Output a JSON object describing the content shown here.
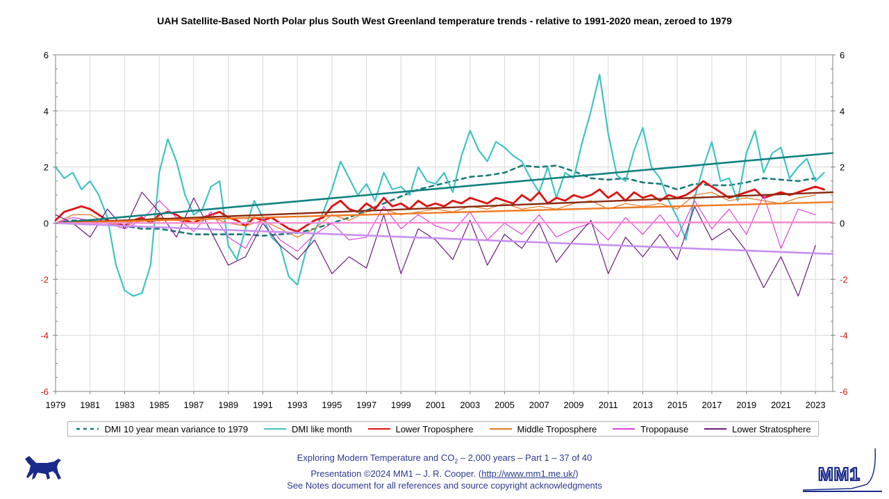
{
  "chart_data": {
    "type": "line",
    "title": "UAH Satellite-Based North Polar plus South West Greenland temperature trends - relative to 1991-2020 mean, zeroed to 1979",
    "xlim": [
      1979,
      2024
    ],
    "ylim": [
      -6,
      6
    ],
    "x_ticks": [
      "1979",
      "1981",
      "1983",
      "1985",
      "1987",
      "1989",
      "1991",
      "1993",
      "1995",
      "1997",
      "1999",
      "2001",
      "2003",
      "2005",
      "2007",
      "2009",
      "2011",
      "2013",
      "2015",
      "2017",
      "2019",
      "2021",
      "2023"
    ],
    "y_ticks": [
      "6",
      "4",
      "2",
      "0",
      "-2",
      "-4",
      "-6"
    ],
    "y_tick_values": [
      6,
      4,
      2,
      0,
      -2,
      -4,
      -6
    ],
    "grid": true,
    "legend_position": "bottom",
    "series": [
      {
        "name": "DMI 10 year mean variance to 1979",
        "color": "#1a7a7a",
        "style": "dashed",
        "width": 2.6,
        "x": [
          1979,
          1980,
          1981,
          1982,
          1983,
          1984,
          1985,
          1986,
          1987,
          1988,
          1989,
          1990,
          1991,
          1992,
          1993,
          1994,
          1995,
          1996,
          1997,
          1998,
          1999,
          2000,
          2001,
          2002,
          2003,
          2004,
          2005,
          2006,
          2007,
          2008,
          2009,
          2010,
          2011,
          2012,
          2013,
          2014,
          2015,
          2016,
          2017,
          2018,
          2019,
          2020,
          2021,
          2022,
          2023
        ],
        "y": [
          0.0,
          0.1,
          0.1,
          0.0,
          -0.1,
          -0.2,
          -0.2,
          -0.3,
          -0.4,
          -0.4,
          -0.4,
          -0.4,
          -0.45,
          -0.4,
          -0.35,
          -0.2,
          0.0,
          0.2,
          0.45,
          0.7,
          0.95,
          1.2,
          1.35,
          1.5,
          1.65,
          1.7,
          1.8,
          2.05,
          2.0,
          2.05,
          1.85,
          1.6,
          1.55,
          1.6,
          1.45,
          1.4,
          1.2,
          1.4,
          1.35,
          1.35,
          1.45,
          1.6,
          1.55,
          1.5,
          1.6
        ]
      },
      {
        "name": "DMI like month",
        "color": "#3ec4c4",
        "style": "solid",
        "width": 2.2,
        "x": [
          1979,
          1979.5,
          1980,
          1980.5,
          1981,
          1981.5,
          1982,
          1982.5,
          1983,
          1983.5,
          1984,
          1984.5,
          1985,
          1985.5,
          1986,
          1986.5,
          1987,
          1987.5,
          1988,
          1988.5,
          1989,
          1989.5,
          1990,
          1990.5,
          1991,
          1991.5,
          1992,
          1992.5,
          1993,
          1993.5,
          1994,
          1994.5,
          1995,
          1995.5,
          1996,
          1996.5,
          1997,
          1997.5,
          1998,
          1998.5,
          1999,
          1999.5,
          2000,
          2000.5,
          2001,
          2001.5,
          2002,
          2002.5,
          2003,
          2003.5,
          2004,
          2004.5,
          2005,
          2005.5,
          2006,
          2006.5,
          2007,
          2007.5,
          2008,
          2008.5,
          2009,
          2009.5,
          2010,
          2010.5,
          2011,
          2011.5,
          2012,
          2012.5,
          2013,
          2013.5,
          2014,
          2014.5,
          2015,
          2015.5,
          2016,
          2016.5,
          2017,
          2017.5,
          2018,
          2018.5,
          2019,
          2019.5,
          2020,
          2020.5,
          2021,
          2021.5,
          2022,
          2022.5,
          2023,
          2023.5
        ],
        "y": [
          2.0,
          1.6,
          1.8,
          1.2,
          1.5,
          1.0,
          0.2,
          -1.5,
          -2.4,
          -2.6,
          -2.5,
          -1.5,
          1.8,
          3.0,
          2.2,
          1.0,
          0.3,
          0.5,
          1.3,
          1.5,
          -0.8,
          -1.3,
          -0.2,
          0.8,
          0.2,
          -0.5,
          -0.8,
          -1.9,
          -2.2,
          -1.0,
          -0.3,
          0.4,
          1.2,
          2.2,
          1.6,
          1.0,
          1.4,
          0.8,
          1.8,
          1.2,
          1.3,
          1.0,
          2.0,
          1.5,
          1.4,
          1.8,
          1.1,
          2.4,
          3.3,
          2.6,
          2.2,
          2.9,
          2.7,
          2.4,
          2.2,
          1.6,
          1.1,
          2.0,
          0.9,
          1.8,
          1.6,
          2.9,
          4.0,
          5.3,
          3.2,
          1.7,
          1.5,
          2.6,
          3.4,
          2.0,
          1.6,
          0.8,
          0.2,
          -0.6,
          0.9,
          2.0,
          2.9,
          1.5,
          1.6,
          0.8,
          2.5,
          3.3,
          1.8,
          2.5,
          2.7,
          1.6,
          2.0,
          2.3,
          1.5,
          1.8
        ]
      },
      {
        "name": "Lower Troposphere",
        "color": "#e01010",
        "style": "solid",
        "width": 2.8,
        "x": [
          1979,
          1979.5,
          1980,
          1980.5,
          1981,
          1981.5,
          1982,
          1982.5,
          1983,
          1983.5,
          1984,
          1984.5,
          1985,
          1985.5,
          1986,
          1986.5,
          1987,
          1987.5,
          1988,
          1988.5,
          1989,
          1989.5,
          1990,
          1990.5,
          1991,
          1991.5,
          1992,
          1992.5,
          1993,
          1993.5,
          1994,
          1994.5,
          1995,
          1995.5,
          1996,
          1996.5,
          1997,
          1997.5,
          1998,
          1998.5,
          1999,
          1999.5,
          2000,
          2000.5,
          2001,
          2001.5,
          2002,
          2002.5,
          2003,
          2003.5,
          2004,
          2004.5,
          2005,
          2005.5,
          2006,
          2006.5,
          2007,
          2007.5,
          2008,
          2008.5,
          2009,
          2009.5,
          2010,
          2010.5,
          2011,
          2011.5,
          2012,
          2012.5,
          2013,
          2013.5,
          2014,
          2014.5,
          2015,
          2015.5,
          2016,
          2016.5,
          2017,
          2017.5,
          2018,
          2018.5,
          2019,
          2019.5,
          2020,
          2020.5,
          2021,
          2021.5,
          2022,
          2022.5,
          2023,
          2023.5
        ],
        "y": [
          0.1,
          0.4,
          0.5,
          0.6,
          0.5,
          0.3,
          0.1,
          0.0,
          -0.1,
          0.1,
          0.2,
          0.0,
          0.3,
          0.4,
          0.3,
          0.1,
          0.0,
          0.2,
          0.3,
          0.4,
          0.2,
          0.1,
          -0.1,
          0.2,
          0.1,
          0.2,
          0.0,
          -0.2,
          -0.3,
          -0.1,
          0.1,
          0.2,
          0.6,
          0.8,
          0.5,
          0.4,
          0.7,
          0.5,
          0.9,
          0.6,
          0.7,
          0.5,
          0.8,
          0.6,
          0.7,
          0.6,
          0.8,
          0.7,
          0.9,
          0.8,
          0.7,
          0.9,
          0.8,
          0.7,
          1.0,
          0.8,
          1.1,
          0.7,
          0.9,
          0.8,
          1.0,
          0.9,
          1.0,
          1.2,
          0.9,
          1.1,
          0.8,
          1.1,
          0.9,
          1.0,
          0.8,
          1.0,
          0.9,
          1.0,
          1.2,
          1.5,
          1.3,
          1.1,
          0.9,
          1.0,
          1.1,
          1.2,
          0.9,
          1.0,
          1.1,
          1.0,
          1.1,
          1.2,
          1.3,
          1.2
        ]
      },
      {
        "name": "Middle Troposphere",
        "color": "#e07820",
        "style": "solid",
        "width": 1.2,
        "x": [
          1979,
          1980,
          1981,
          1982,
          1983,
          1984,
          1985,
          1986,
          1987,
          1988,
          1989,
          1990,
          1991,
          1992,
          1993,
          1994,
          1995,
          1996,
          1997,
          1998,
          1999,
          2000,
          2001,
          2002,
          2003,
          2004,
          2005,
          2006,
          2007,
          2008,
          2009,
          2010,
          2011,
          2012,
          2013,
          2014,
          2015,
          2016,
          2017,
          2018,
          2019,
          2020,
          2021,
          2022,
          2023
        ],
        "y": [
          0.0,
          0.3,
          0.3,
          0.0,
          -0.1,
          0.1,
          0.2,
          0.1,
          0.0,
          0.2,
          0.0,
          -0.1,
          0.1,
          -0.2,
          -0.5,
          -0.2,
          0.3,
          0.1,
          0.4,
          0.5,
          0.3,
          0.4,
          0.5,
          0.4,
          0.6,
          0.5,
          0.7,
          0.5,
          0.6,
          0.5,
          0.7,
          0.8,
          0.5,
          0.7,
          0.6,
          0.7,
          0.5,
          1.0,
          1.1,
          0.8,
          0.9,
          0.8,
          0.7,
          0.9,
          1.0
        ]
      },
      {
        "name": "Tropopause",
        "color": "#e040e0",
        "style": "solid",
        "width": 1.2,
        "x": [
          1979,
          1980,
          1981,
          1982,
          1983,
          1984,
          1985,
          1986,
          1987,
          1988,
          1989,
          1990,
          1991,
          1992,
          1993,
          1994,
          1995,
          1996,
          1997,
          1998,
          1999,
          2000,
          2001,
          2002,
          2003,
          2004,
          2005,
          2006,
          2007,
          2008,
          2009,
          2010,
          2011,
          2012,
          2013,
          2014,
          2015,
          2016,
          2017,
          2018,
          2019,
          2020,
          2021,
          2022,
          2023
        ],
        "y": [
          0.0,
          0.2,
          0.1,
          0.0,
          -0.2,
          0.1,
          0.8,
          0.2,
          -0.3,
          0.4,
          -0.5,
          -0.9,
          0.2,
          -0.6,
          -1.0,
          -0.4,
          0.0,
          -0.6,
          -0.5,
          0.6,
          -0.2,
          0.3,
          -0.1,
          -0.3,
          0.4,
          -0.6,
          0.0,
          -0.4,
          0.3,
          -0.5,
          -0.2,
          0.0,
          -0.6,
          0.2,
          -0.4,
          0.3,
          -0.5,
          0.8,
          -0.2,
          0.5,
          -0.4,
          1.0,
          -0.9,
          0.5,
          0.3
        ]
      },
      {
        "name": "Lower Stratosphere",
        "color": "#6a1a7a",
        "style": "solid",
        "width": 1.2,
        "x": [
          1979,
          1980,
          1981,
          1982,
          1983,
          1984,
          1985,
          1986,
          1987,
          1988,
          1989,
          1990,
          1991,
          1992,
          1993,
          1994,
          1995,
          1996,
          1997,
          1998,
          1999,
          2000,
          2001,
          2002,
          2003,
          2004,
          2005,
          2006,
          2007,
          2008,
          2009,
          2010,
          2011,
          2012,
          2013,
          2014,
          2015,
          2016,
          2017,
          2018,
          2019,
          2020,
          2021,
          2022,
          2023
        ],
        "y": [
          0.3,
          0.0,
          -0.5,
          0.5,
          -0.2,
          1.1,
          0.4,
          -0.5,
          0.9,
          -0.3,
          -1.5,
          -1.2,
          0.0,
          -0.8,
          -1.3,
          -0.6,
          -1.8,
          -1.2,
          -1.6,
          0.3,
          -1.8,
          -0.2,
          -0.6,
          -1.3,
          0.1,
          -1.5,
          -0.4,
          -0.9,
          0.0,
          -1.4,
          -0.6,
          0.1,
          -1.8,
          -0.5,
          -1.2,
          -0.4,
          -1.3,
          0.6,
          -0.6,
          -0.2,
          -1.0,
          -2.3,
          -1.2,
          -2.6,
          -0.8
        ]
      },
      {
        "name": "DMI like month trend",
        "color": "#108080",
        "style": "solid",
        "width": 2.6,
        "legend": false,
        "x": [
          1979,
          2024
        ],
        "y": [
          0.0,
          2.5
        ]
      },
      {
        "name": "Lower Troposphere trend",
        "color": "#8a2a10",
        "style": "solid",
        "width": 2.4,
        "legend": false,
        "x": [
          1979,
          2024
        ],
        "y": [
          0.0,
          1.1
        ]
      },
      {
        "name": "Middle Troposphere trend",
        "color": "#f07a20",
        "style": "solid",
        "width": 2.4,
        "legend": false,
        "x": [
          1979,
          2024
        ],
        "y": [
          0.0,
          0.75
        ]
      },
      {
        "name": "Tropopause trend",
        "color": "#f58cd0",
        "style": "solid",
        "width": 2.4,
        "legend": false,
        "x": [
          1979,
          2024
        ],
        "y": [
          0.0,
          0.03
        ]
      },
      {
        "name": "Lower Stratosphere trend",
        "color": "#c890f0",
        "style": "solid",
        "width": 2.6,
        "legend": false,
        "x": [
          1979,
          2024
        ],
        "y": [
          0.0,
          -1.1
        ]
      }
    ]
  },
  "legend": {
    "items": [
      {
        "label": "DMI 10 year mean variance to 1979",
        "color": "#1a7a7a",
        "dashed": true
      },
      {
        "label": "DMI like month",
        "color": "#3ec4c4",
        "dashed": false
      },
      {
        "label": "Lower Troposphere",
        "color": "#e01010",
        "dashed": false
      },
      {
        "label": "Middle Troposphere",
        "color": "#e07820",
        "dashed": false
      },
      {
        "label": "Tropopause",
        "color": "#e040e0",
        "dashed": false
      },
      {
        "label": "Lower Stratosphere",
        "color": "#6a1a7a",
        "dashed": false
      }
    ]
  },
  "colors": {
    "negative_tick": "#e01010",
    "positive_tick": "#000000",
    "footer_text": "#2b3a8f"
  },
  "footer": {
    "line1_prefix": "Exploring Modern Temperature and CO",
    "line1_subscript": "2",
    "line1_suffix": " – 2,000 years – Part 1 – 37 of 40",
    "line2_prefix": "Presentation ©2024 MM1 – J. R. Cooper. (",
    "line2_link": "http://www.mm1.me.uk/",
    "line2_suffix": ")",
    "line3": "See Notes document for all references and source copyright acknowledgments"
  },
  "logos": {
    "left_icon": "dog-icon",
    "right_text": "MM1"
  }
}
